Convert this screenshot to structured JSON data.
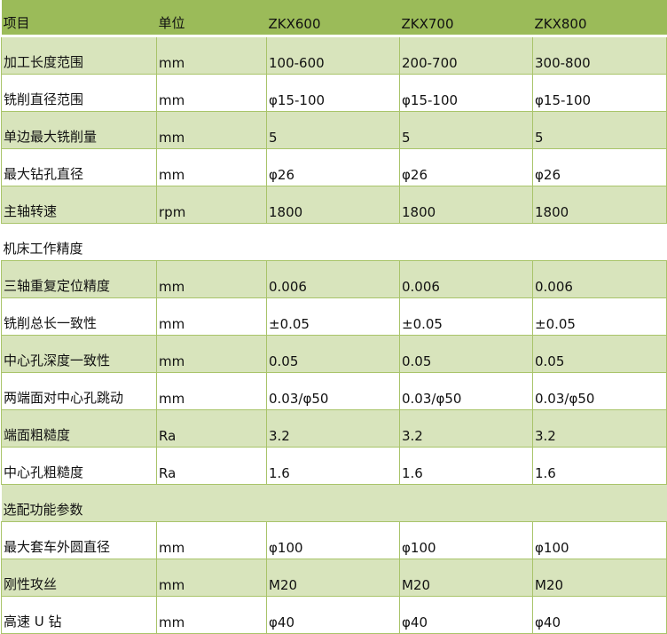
{
  "colors": {
    "header": "#9bbb59",
    "band": "#d8e4bc",
    "border": "#a9c46a"
  },
  "header": [
    "项目",
    "单位",
    "ZKX600",
    "ZKX700",
    "ZKX800"
  ],
  "rows": [
    {
      "type": "data",
      "cells": [
        "加工长度范围",
        "mm",
        "100-600",
        "200-700",
        "300-800"
      ]
    },
    {
      "type": "data",
      "cells": [
        "铣削直径范围",
        "mm",
        "φ15-100",
        "φ15-100",
        "φ15-100"
      ]
    },
    {
      "type": "data",
      "cells": [
        "单边最大铣削量",
        "mm",
        "5",
        "5",
        "5"
      ]
    },
    {
      "type": "data",
      "cells": [
        "最大钻孔直径",
        "mm",
        "φ26",
        "φ26",
        "φ26"
      ]
    },
    {
      "type": "data",
      "cells": [
        "主轴转速",
        "rpm",
        "1800",
        "1800",
        "1800"
      ]
    },
    {
      "type": "section",
      "cells": [
        "机床工作精度"
      ]
    },
    {
      "type": "data",
      "cells": [
        "三轴重复定位精度",
        "mm",
        "0.006",
        "0.006",
        "0.006"
      ]
    },
    {
      "type": "data",
      "cells": [
        "铣削总长一致性",
        "mm",
        "±0.05",
        "±0.05",
        "±0.05"
      ]
    },
    {
      "type": "data",
      "cells": [
        "中心孔深度一致性",
        "mm",
        "0.05",
        "0.05",
        "0.05"
      ]
    },
    {
      "type": "data",
      "cells": [
        "两端面对中心孔跳动",
        "mm",
        "0.03/φ50",
        "0.03/φ50",
        "0.03/φ50"
      ]
    },
    {
      "type": "data",
      "cells": [
        "端面粗糙度",
        "Ra",
        "3.2",
        "3.2",
        "3.2"
      ]
    },
    {
      "type": "data",
      "cells": [
        "中心孔粗糙度",
        "Ra",
        "1.6",
        "1.6",
        "1.6"
      ]
    },
    {
      "type": "section",
      "cells": [
        "选配功能参数"
      ]
    },
    {
      "type": "data",
      "cells": [
        "最大套车外圆直径",
        "mm",
        "φ100",
        "φ100",
        "φ100"
      ]
    },
    {
      "type": "data",
      "cells": [
        "刚性攻丝",
        "mm",
        "M20",
        "M20",
        "M20"
      ]
    },
    {
      "type": "data",
      "cells": [
        "高速 U 钻",
        "mm",
        "φ40",
        "φ40",
        "φ40"
      ]
    }
  ]
}
